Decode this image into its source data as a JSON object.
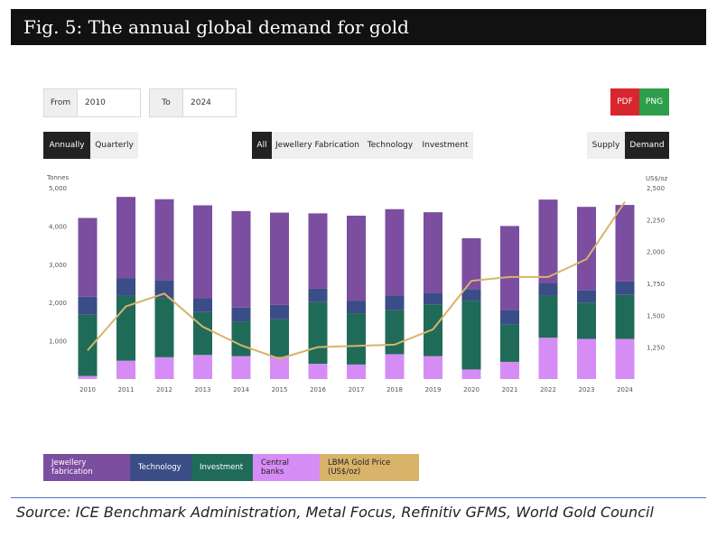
{
  "header": {
    "title": "Fig. 5:  The annual global demand for gold"
  },
  "controls": {
    "from_label": "From",
    "from_value": "2010",
    "to_label": "To",
    "to_value": "2024",
    "pdf": "PDF",
    "png": "PNG",
    "annually": "Annually",
    "quarterly": "Quarterly",
    "filters": [
      "All",
      "Jewellery Fabrication",
      "Technology",
      "Investment"
    ],
    "supply": "Supply",
    "demand": "Demand"
  },
  "source": "Source: ICE Benchmark Administration, Metal Focus, Refinitiv GFMS, World Gold Council",
  "colors": {
    "jewellery": "#7b4ea0",
    "technology": "#3b4d86",
    "investment": "#1f6b58",
    "central_banks": "#d68cf5",
    "gold_price": "#d8b36a"
  },
  "chart_data": {
    "type": "bar",
    "stacked": true,
    "categories": [
      "2010",
      "2011",
      "2012",
      "2013",
      "2014",
      "2015",
      "2016",
      "2017",
      "2018",
      "2019",
      "2020",
      "2021",
      "2022",
      "2023",
      "2024"
    ],
    "ylabel": "Tonnes",
    "y2label": "US$/oz",
    "ylim": [
      0,
      5000
    ],
    "y2lim": [
      1000,
      2500
    ],
    "yticks": [
      {
        "v": 1000,
        "t": "1,000"
      },
      {
        "v": 2000,
        "t": "2,000"
      },
      {
        "v": 3000,
        "t": "3,000"
      },
      {
        "v": 4000,
        "t": "4,000"
      },
      {
        "v": 5000,
        "t": "5,000"
      }
    ],
    "y2ticks": [
      {
        "v": 1250,
        "t": "1,250"
      },
      {
        "v": 1500,
        "t": "1,500"
      },
      {
        "v": 1750,
        "t": "1,750"
      },
      {
        "v": 2000,
        "t": "2,000"
      },
      {
        "v": 2250,
        "t": "2,250"
      },
      {
        "v": 2500,
        "t": "2,500"
      }
    ],
    "series": [
      {
        "name": "Central banks",
        "key": "central_banks",
        "values": [
          80,
          480,
          570,
          630,
          600,
          580,
          400,
          380,
          650,
          600,
          250,
          450,
          1080,
          1050,
          1050
        ]
      },
      {
        "name": "Investment",
        "key": "investment",
        "values": [
          1600,
          1700,
          1550,
          1120,
          900,
          980,
          1620,
          1340,
          1150,
          1350,
          1800,
          980,
          1100,
          950,
          1150
        ]
      },
      {
        "name": "Technology",
        "key": "technology",
        "values": [
          470,
          460,
          460,
          360,
          370,
          380,
          340,
          330,
          380,
          300,
          300,
          380,
          320,
          320,
          350
        ]
      },
      {
        "name": "Jewellery fabrication",
        "key": "jewellery",
        "values": [
          2060,
          2120,
          2120,
          2430,
          2520,
          2410,
          1970,
          2220,
          2260,
          2110,
          1330,
          2190,
          2190,
          2180,
          2000
        ]
      }
    ],
    "line": {
      "name": "LBMA Gold Price (US$/oz)",
      "key": "gold_price",
      "values": [
        1225,
        1570,
        1670,
        1410,
        1265,
        1160,
        1250,
        1260,
        1270,
        1390,
        1770,
        1800,
        1800,
        1940,
        2390
      ]
    },
    "legend": [
      "Jewellery fabrication",
      "Technology",
      "Investment",
      "Central banks",
      "LBMA Gold Price (US$/oz)"
    ],
    "legend_position": "bottom-left",
    "grid": false
  }
}
